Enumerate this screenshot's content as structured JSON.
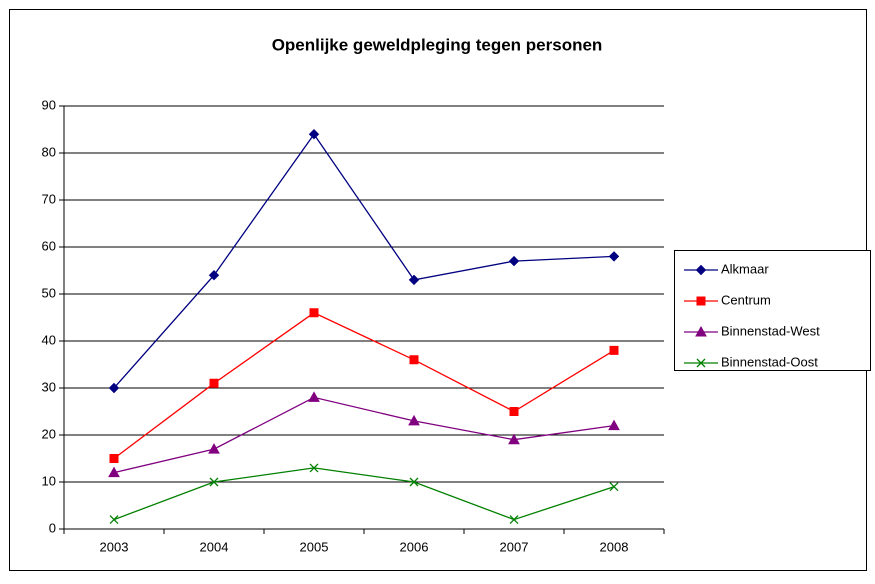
{
  "chart_data": {
    "type": "line",
    "title": "Openlijke geweldpleging tegen personen",
    "categories": [
      "2003",
      "2004",
      "2005",
      "2006",
      "2007",
      "2008"
    ],
    "series": [
      {
        "name": "Alkmaar",
        "color": "#000080",
        "marker": "diamond",
        "values": [
          30,
          54,
          84,
          53,
          57,
          58
        ]
      },
      {
        "name": "Centrum",
        "color": "#ff0000",
        "marker": "square",
        "values": [
          15,
          31,
          46,
          36,
          25,
          38
        ]
      },
      {
        "name": "Binnenstad-West",
        "color": "#800080",
        "marker": "triangle",
        "values": [
          12,
          17,
          28,
          23,
          19,
          22
        ]
      },
      {
        "name": "Binnenstad-Oost",
        "color": "#008000",
        "marker": "x",
        "values": [
          2,
          10,
          13,
          10,
          2,
          9
        ]
      }
    ],
    "ylim": [
      0,
      90
    ],
    "yticks": [
      0,
      10,
      20,
      30,
      40,
      50,
      60,
      70,
      80,
      90
    ],
    "grid": true,
    "legend": "right"
  }
}
